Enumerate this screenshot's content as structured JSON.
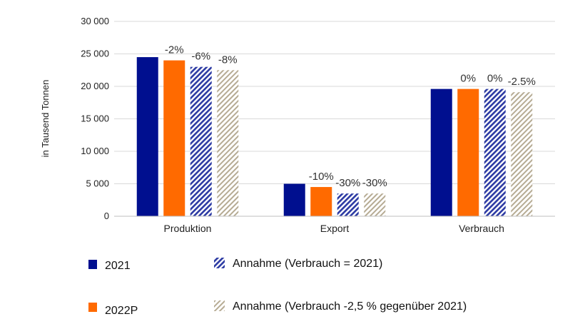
{
  "chart_data": {
    "type": "bar",
    "title": "",
    "xlabel": "",
    "ylabel": "in Tausend Tonnen",
    "ylim": [
      0,
      30000
    ],
    "yticks": [
      0,
      5000,
      10000,
      15000,
      20000,
      25000,
      30000
    ],
    "ytick_labels": [
      "0",
      "5 000",
      "10 000",
      "15 000",
      "20 000",
      "25 000",
      "30 000"
    ],
    "grid": true,
    "legend_position": "bottom",
    "categories": [
      "Produktion",
      "Export",
      "Verbrauch"
    ],
    "series": [
      {
        "name": "2021",
        "style": "solid",
        "color": "#000f8f",
        "values": [
          24500,
          5000,
          19600
        ],
        "labels": [
          "",
          "",
          ""
        ]
      },
      {
        "name": "2022P",
        "style": "solid",
        "color": "#ff6a00",
        "values": [
          24000,
          4500,
          19600
        ],
        "labels": [
          "-2%",
          "-10%",
          "0%"
        ]
      },
      {
        "name": "Annahme (Verbrauch = 2021)",
        "style": "hatched",
        "color": "#2c3aa3",
        "values": [
          23000,
          3500,
          19600
        ],
        "labels": [
          "-6%",
          "-30%",
          "0%"
        ]
      },
      {
        "name": "Annahme (Verbrauch -2,5 % gegenüber 2021)",
        "style": "hatched",
        "color": "#b6ab93",
        "values": [
          22500,
          3500,
          19100
        ],
        "labels": [
          "-8%",
          "-30%",
          "-2.5%"
        ]
      }
    ]
  }
}
